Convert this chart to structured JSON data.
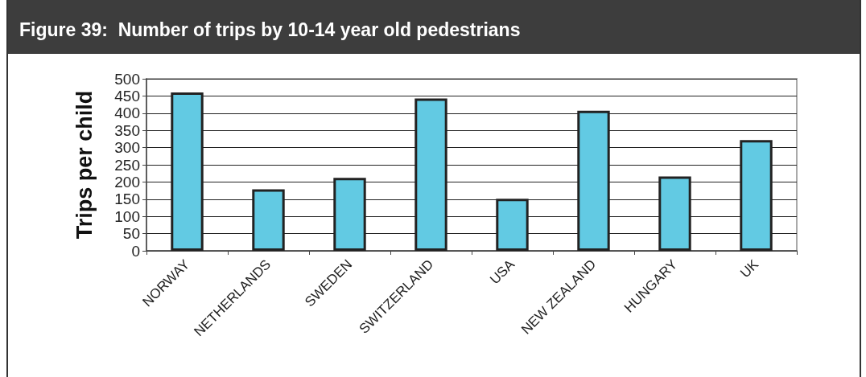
{
  "chart_data": {
    "type": "bar",
    "title": "Figure 39:  Number of trips by 10-14 year old pedestrians",
    "ylabel": "Trips per child",
    "categories": [
      "NORWAY",
      "NETHERLANDS",
      "SWEDEN",
      "SWITZERLAND",
      "USA",
      "NEW ZEALAND",
      "HUNGARY",
      "UK"
    ],
    "values": [
      460,
      179,
      212,
      443,
      151,
      407,
      216,
      322
    ],
    "color": "#62cae3",
    "ylim": [
      0,
      500
    ],
    "yticks": [
      0,
      50,
      100,
      150,
      200,
      250,
      300,
      350,
      400,
      450,
      500
    ],
    "grid": "y"
  }
}
